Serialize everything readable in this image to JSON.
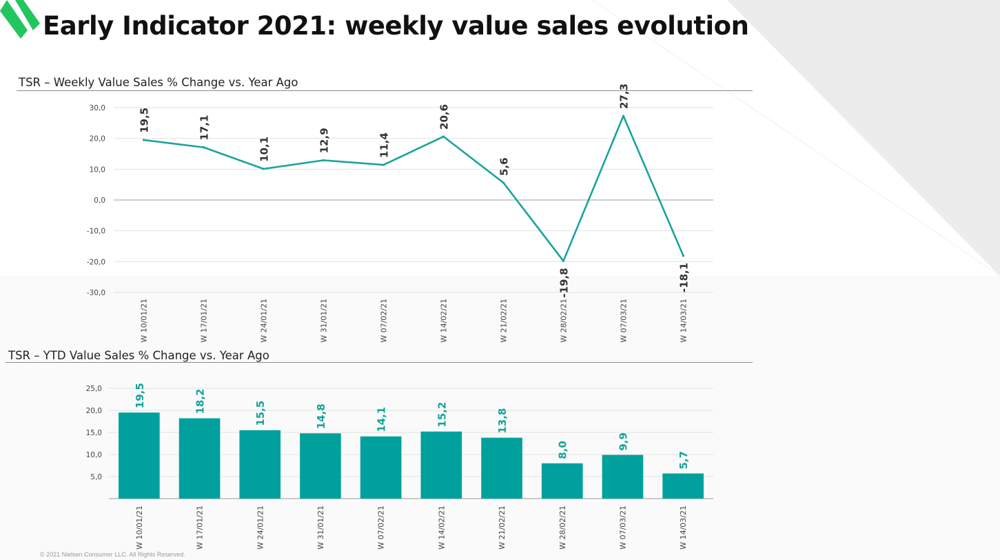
{
  "page": {
    "title": "Early Indicator 2021: weekly value sales evolution",
    "footer": "© 2021 Nielsen Consumer LLC. All Rights Reserved.",
    "accent_color": "#0ea29b",
    "logo_color": "#22c55e"
  },
  "chart_data": [
    {
      "type": "line",
      "title": "TSR – Weekly Value Sales % Change vs. Year Ago",
      "categories": [
        "W 10/01/21",
        "W 17/01/21",
        "W 24/01/21",
        "W 31/01/21",
        "W 07/02/21",
        "W 14/02/21",
        "W 21/02/21",
        "W 28/02/21",
        "W 07/03/21",
        "W 14/03/21"
      ],
      "values": [
        19.5,
        17.1,
        10.1,
        12.9,
        11.4,
        20.6,
        5.6,
        -19.8,
        27.3,
        -18.1
      ],
      "data_labels": [
        "19,5",
        "17,1",
        "10,1",
        "12,9",
        "11,4",
        "20,6",
        "5,6",
        "-19,8",
        "27,3",
        "-18,1"
      ],
      "y_ticks": [
        30,
        20,
        10,
        0,
        -10,
        -20,
        -30
      ],
      "y_tick_labels": [
        "30,0",
        "20,0",
        "10,0",
        "0,0",
        "-10,0",
        "-20,0",
        "-30,0"
      ],
      "ylim": [
        -30,
        30
      ],
      "grid": true,
      "line_color": "#1aa39c",
      "label_color": "#333333"
    },
    {
      "type": "bar",
      "title": "TSR – YTD Value Sales % Change vs. Year Ago",
      "categories": [
        "W 10/01/21",
        "W 17/01/21",
        "W 24/01/21",
        "W 31/01/21",
        "W 07/02/21",
        "W 14/02/21",
        "W 21/02/21",
        "W 28/02/21",
        "W 07/03/21",
        "W 14/03/21"
      ],
      "values": [
        19.5,
        18.2,
        15.5,
        14.8,
        14.1,
        15.2,
        13.8,
        8.0,
        9.9,
        5.7
      ],
      "data_labels": [
        "19,5",
        "18,2",
        "15,5",
        "14,8",
        "14,1",
        "15,2",
        "13,8",
        "8,0",
        "9,9",
        "5,7"
      ],
      "y_ticks": [
        25,
        20,
        15,
        10,
        5
      ],
      "y_tick_labels": [
        "25,0",
        "20,0",
        "15,0",
        "10,0",
        "5,0"
      ],
      "ylim": [
        0,
        25
      ],
      "grid": true,
      "bar_color": "#00a19c",
      "label_color": "#12a39c"
    }
  ]
}
